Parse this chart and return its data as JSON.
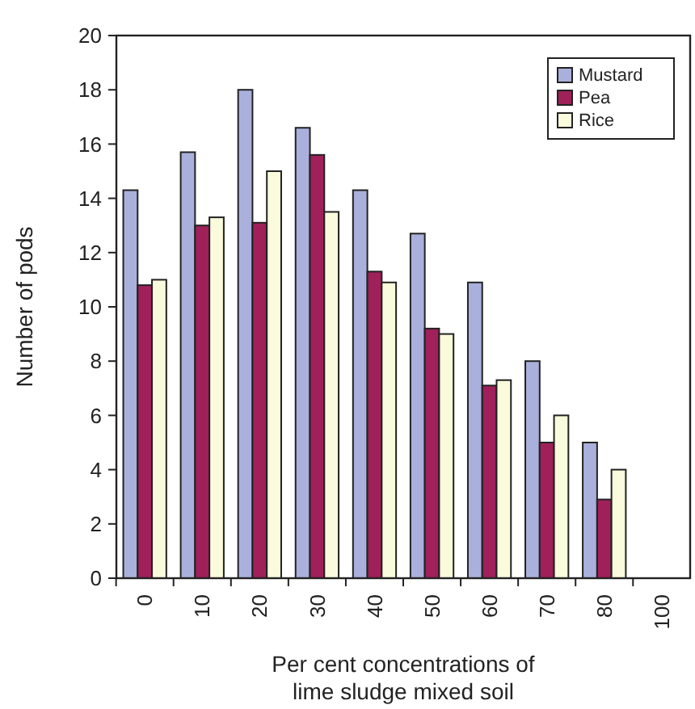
{
  "chart_data": {
    "type": "bar",
    "xlabel": "Per cent concentrations of\nlime sludge mixed soil",
    "ylabel": "Number of pods",
    "categories": [
      "0",
      "10",
      "20",
      "30",
      "40",
      "50",
      "60",
      "70",
      "80",
      "100"
    ],
    "series": [
      {
        "name": "Mustard",
        "color": "#aab0dc",
        "values": [
          14.3,
          15.7,
          18.0,
          16.6,
          14.3,
          12.7,
          10.9,
          8.0,
          5.0,
          0
        ]
      },
      {
        "name": "Pea",
        "color": "#a0205a",
        "values": [
          10.8,
          13.0,
          13.1,
          15.6,
          11.3,
          9.2,
          7.1,
          5.0,
          2.9,
          0
        ]
      },
      {
        "name": "Rice",
        "color": "#fafadc",
        "values": [
          11.0,
          13.3,
          15.0,
          13.5,
          10.9,
          9.0,
          7.3,
          6.0,
          4.0,
          0
        ]
      }
    ],
    "ylim": [
      0,
      20
    ],
    "yticks": [
      0,
      2,
      4,
      6,
      8,
      10,
      12,
      14,
      16,
      18,
      20
    ],
    "grid": false,
    "legend": "top right"
  }
}
